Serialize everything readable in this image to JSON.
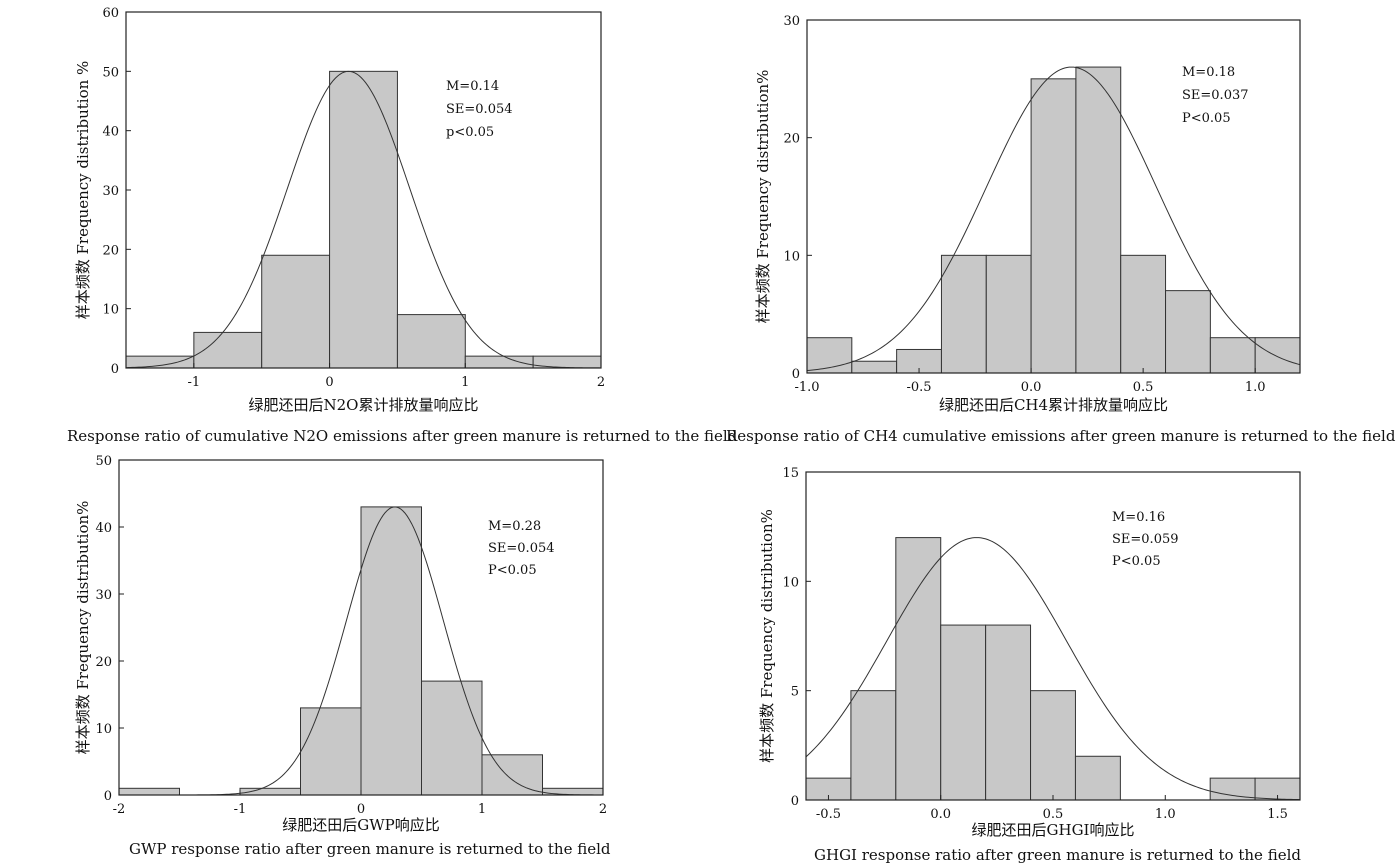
{
  "chart_data": [
    {
      "type": "bar",
      "histogram": true,
      "bin_edges": [
        -1.5,
        -1,
        -0.5,
        0,
        0.5,
        1,
        1.5,
        2
      ],
      "counts": [
        2,
        6,
        19,
        50,
        9,
        2,
        2
      ],
      "xlim": [
        -1.5,
        2
      ],
      "ylim": [
        0,
        60
      ],
      "xticks": [
        "-1",
        "0",
        "1",
        "2"
      ],
      "yticks": [
        "0",
        "10",
        "20",
        "30",
        "40",
        "50",
        "60"
      ],
      "xlabel": "绿肥还田后N2O累计排放量响应比",
      "ylabel": "样本频数 Frequency distribution %",
      "stats": [
        "M=0.14",
        "SE=0.054",
        "p<0.05"
      ],
      "normal_curve": {
        "mean": 0.14,
        "sd": 0.45,
        "peak": 50
      },
      "caption": "Response ratio of cumulative N2O emissions after green manure is returned to the field"
    },
    {
      "type": "bar",
      "histogram": true,
      "bin_edges": [
        -1.0,
        -0.8,
        -0.6,
        -0.4,
        -0.2,
        0.0,
        0.2,
        0.4,
        0.6,
        0.8,
        1.0,
        1.2
      ],
      "counts": [
        3,
        1,
        2,
        10,
        10,
        25,
        26,
        10,
        7,
        3,
        3
      ],
      "xlim": [
        -1.0,
        1.2
      ],
      "ylim": [
        0,
        30
      ],
      "xticks": [
        "-1.0",
        "-0.5",
        "0.0",
        "0.5",
        "1.0"
      ],
      "yticks": [
        "0",
        "10",
        "20",
        "30"
      ],
      "xlabel": "绿肥还田后CH4累计排放量响应比",
      "ylabel": "样本频数 Frequency distribution%",
      "stats": [
        "M=0.18",
        "SE=0.037",
        "P<0.05"
      ],
      "normal_curve": {
        "mean": 0.18,
        "sd": 0.38,
        "peak": 26
      },
      "caption": "Response ratio of CH4 cumulative emissions after green manure is returned to the field"
    },
    {
      "type": "bar",
      "histogram": true,
      "bin_edges": [
        -2,
        -1.5,
        -1,
        -0.5,
        0,
        0.5,
        1,
        1.5,
        2
      ],
      "counts": [
        1,
        0,
        1,
        13,
        43,
        17,
        6,
        1
      ],
      "xlim": [
        -2,
        2
      ],
      "ylim": [
        0,
        50
      ],
      "xticks": [
        "-2",
        "-1",
        "0",
        "1",
        "2"
      ],
      "yticks": [
        "0",
        "10",
        "20",
        "30",
        "40",
        "50"
      ],
      "xlabel": "绿肥还田后GWP响应比",
      "ylabel": "样本频数 Frequency distribution%",
      "stats": [
        "M=0.28",
        "SE=0.054",
        "P<0.05"
      ],
      "normal_curve": {
        "mean": 0.28,
        "sd": 0.4,
        "peak": 43
      },
      "caption": "GWP response ratio after green manure is returned to the field"
    },
    {
      "type": "bar",
      "histogram": true,
      "bin_edges": [
        -0.6,
        -0.4,
        -0.2,
        0.0,
        0.2,
        0.4,
        0.6,
        0.8,
        1.0,
        1.2,
        1.4,
        1.6
      ],
      "counts": [
        1,
        5,
        12,
        8,
        8,
        5,
        2,
        0,
        0,
        1,
        1
      ],
      "xlim": [
        -0.6,
        1.6
      ],
      "ylim": [
        0,
        15
      ],
      "xticks": [
        "-0.5",
        "0.0",
        "0.5",
        "1.0",
        "1.5"
      ],
      "yticks": [
        "0",
        "5",
        "10",
        "15"
      ],
      "xlabel": "绿肥还田后GHGI响应比",
      "ylabel": "样本频数 Frequency distribution%",
      "stats": [
        "M=0.16",
        "SE=0.059",
        "P<0.05"
      ],
      "normal_curve": {
        "mean": 0.16,
        "sd": 0.4,
        "peak": 12
      },
      "caption": "GHGI response ratio after green manure is returned to the field"
    }
  ]
}
